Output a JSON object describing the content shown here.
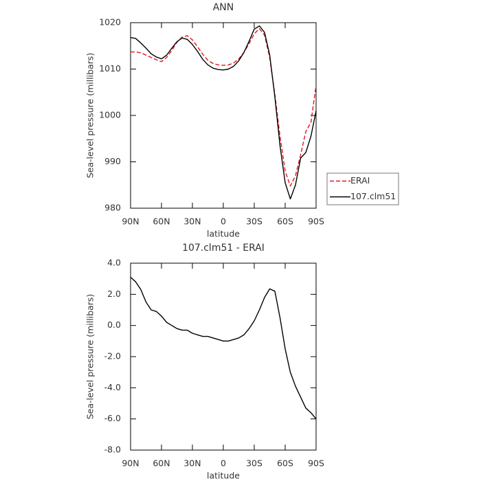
{
  "chart_data": [
    {
      "type": "line",
      "title": "ANN",
      "xlabel": "latitude",
      "ylabel": "Sea-level pressure (millibars)",
      "x": [
        90,
        85,
        80,
        75,
        70,
        65,
        60,
        55,
        50,
        45,
        40,
        35,
        30,
        25,
        20,
        15,
        10,
        5,
        0,
        -5,
        -10,
        -15,
        -20,
        -25,
        -30,
        -35,
        -40,
        -45,
        -50,
        -55,
        -60,
        -65,
        -70,
        -75,
        -80,
        -85,
        -90
      ],
      "series": [
        {
          "name": "ERAI",
          "color": "#e3141c",
          "line_style": "dashed",
          "values": [
            1013.7,
            1013.7,
            1013.5,
            1013,
            1012.5,
            1012,
            1011.6,
            1012.5,
            1014,
            1015.8,
            1016.9,
            1017.2,
            1016.3,
            1014.8,
            1013.2,
            1011.9,
            1011.2,
            1010.9,
            1010.8,
            1010.9,
            1011.3,
            1012.2,
            1013.6,
            1015.5,
            1017.6,
            1018.7,
            1017.3,
            1012.5,
            1004.5,
            995.5,
            988,
            984.8,
            987,
            991.5,
            996.5,
            998.5,
            1006.5
          ]
        },
        {
          "name": "107.clm51",
          "color": "#000000",
          "line_style": "solid",
          "values": [
            1016.8,
            1016.6,
            1015.6,
            1014.5,
            1013.3,
            1012.6,
            1012.2,
            1013,
            1014.5,
            1015.9,
            1016.7,
            1016.4,
            1015.3,
            1013.8,
            1012.1,
            1010.9,
            1010.2,
            1009.9,
            1009.8,
            1010,
            1010.6,
            1011.8,
            1013.6,
            1016,
            1018.6,
            1019.3,
            1017.9,
            1013,
            1004,
            993.5,
            985.5,
            982,
            985,
            990.8,
            992,
            995.5,
            1001
          ]
        }
      ],
      "xlim": [
        90,
        -90
      ],
      "xticks": [
        {
          "value": 90,
          "label": "90N"
        },
        {
          "value": 60,
          "label": "60N"
        },
        {
          "value": 30,
          "label": "30N"
        },
        0,
        {
          "value": -30,
          "label": "30S"
        },
        {
          "value": -60,
          "label": "60S"
        },
        {
          "value": -90,
          "label": "90S"
        }
      ],
      "ylim": [
        980,
        1020
      ],
      "yticks": [
        980,
        990,
        1000,
        1010,
        1020
      ],
      "legend": "right"
    },
    {
      "type": "line",
      "title": "107.clm51 - ERAI",
      "xlabel": "latitude",
      "ylabel": "Sea-level pressure (millibars)",
      "x": [
        90,
        85,
        80,
        75,
        70,
        65,
        60,
        55,
        50,
        45,
        40,
        35,
        30,
        25,
        20,
        15,
        10,
        5,
        0,
        -5,
        -10,
        -15,
        -20,
        -25,
        -30,
        -35,
        -40,
        -45,
        -50,
        -55,
        -60,
        -65,
        -70,
        -75,
        -80,
        -85,
        -90
      ],
      "series": [
        {
          "color": "#000000",
          "line_style": "solid",
          "values": [
            3.1,
            2.8,
            2.3,
            1.5,
            1.0,
            0.9,
            0.6,
            0.2,
            0.0,
            -0.2,
            -0.3,
            -0.3,
            -0.5,
            -0.6,
            -0.7,
            -0.7,
            -0.8,
            -0.9,
            -1.0,
            -1.0,
            -0.9,
            -0.8,
            -0.6,
            -0.2,
            0.3,
            1.0,
            1.8,
            2.35,
            2.2,
            0.5,
            -1.5,
            -3.0,
            -3.9,
            -4.6,
            -5.3,
            -5.6,
            -6.0
          ]
        }
      ],
      "xlim": [
        90,
        -90
      ],
      "xticks": [
        {
          "value": 90,
          "label": "90N"
        },
        {
          "value": 60,
          "label": "60N"
        },
        {
          "value": 30,
          "label": "30N"
        },
        0,
        {
          "value": -30,
          "label": "30S"
        },
        {
          "value": -60,
          "label": "60S"
        },
        {
          "value": -90,
          "label": "90S"
        }
      ],
      "ylim": [
        -8,
        4
      ],
      "yticks": [
        {
          "value": 4,
          "label": "4.0"
        },
        {
          "value": 2,
          "label": "2.0"
        },
        {
          "value": 0,
          "label": "0.0"
        },
        {
          "value": -2,
          "label": "-2.0"
        },
        {
          "value": -4,
          "label": "-4.0"
        },
        {
          "value": -6,
          "label": "-6.0"
        },
        {
          "value": -8,
          "label": "-8.0"
        }
      ]
    }
  ]
}
